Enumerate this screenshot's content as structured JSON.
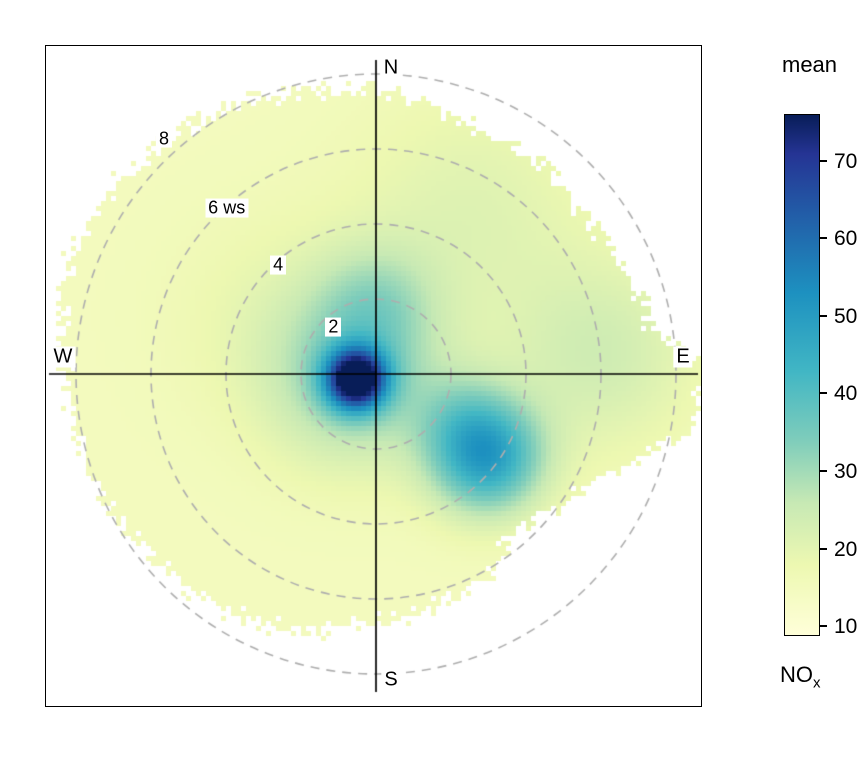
{
  "legend": {
    "title": "mean",
    "pollutant_main": "NO",
    "pollutant_sub": "x"
  },
  "chart_data": {
    "type": "heatmap",
    "subtype": "polar-plot-wind-speed-direction",
    "pollutant": "NOx",
    "statistic": "mean",
    "compass": {
      "n": "N",
      "e": "E",
      "s": "S",
      "w": "W"
    },
    "radial_axis": {
      "unit": "ws",
      "rings_ws": [
        2,
        4,
        6,
        8
      ],
      "ring_labels": [
        "2",
        "4",
        "6 ws",
        "8"
      ],
      "ring_label_radii_ws": [
        1.7,
        3.9,
        5.95,
        8.45
      ],
      "ring_label_angle_deg": 318
    },
    "color_scale": {
      "palette": "YlGnBu",
      "ticks": [
        10,
        20,
        30,
        40,
        50,
        60,
        70
      ],
      "domain": [
        9,
        76
      ],
      "stops": [
        {
          "value": 9,
          "color": "#FFFFD9"
        },
        {
          "value": 18,
          "color": "#EDF8B1"
        },
        {
          "value": 26,
          "color": "#C7E9B4"
        },
        {
          "value": 34,
          "color": "#7FCDBB"
        },
        {
          "value": 43,
          "color": "#41B6C4"
        },
        {
          "value": 53,
          "color": "#1D91C0"
        },
        {
          "value": 63,
          "color": "#225EA8"
        },
        {
          "value": 71,
          "color": "#253494"
        },
        {
          "value": 76,
          "color": "#081D58"
        }
      ]
    },
    "surface": {
      "base_value": 15,
      "features": [
        {
          "name": "primary-hotspot-core",
          "direction_deg": 255,
          "ws": 0.55,
          "peak": 61,
          "sigma_ws": 0.55
        },
        {
          "name": "primary-hotspot-halo",
          "direction_deg": 255,
          "ws": 0.55,
          "peak": 17,
          "sigma_ws": 1.6
        },
        {
          "name": "southeast-plume",
          "direction_deg": 127,
          "ws": 3.7,
          "peak": 33,
          "sigma_ws": 1.05
        },
        {
          "name": "southeast-bridge",
          "direction_deg": 117,
          "ws": 2.6,
          "peak": 8,
          "sigma_ws": 0.9
        },
        {
          "name": "north-streak",
          "direction_deg": 0,
          "ws": 1.9,
          "peak": 10,
          "sigma_ws": 1.1
        },
        {
          "name": "east-elevated-band",
          "direction_deg": 85,
          "ws": 6.0,
          "peak": 9,
          "sigma_ws": 1.8
        },
        {
          "name": "northeast-tinge",
          "direction_deg": 30,
          "ws": 5.0,
          "peak": 6,
          "sigma_ws": 2.2
        },
        {
          "name": "west-mild",
          "direction_deg": 300,
          "ws": 3.0,
          "peak": 4,
          "sigma_ws": 2.0
        }
      ],
      "boundary_deg_step": 10,
      "boundary_max_ws": [
        7.6,
        7.4,
        7.1,
        7.0,
        7.2,
        6.9,
        7.1,
        7.3,
        7.4,
        8.8,
        8.5,
        7.0,
        6.3,
        5.8,
        5.6,
        6.1,
        6.3,
        6.5,
        6.6,
        6.9,
        7.2,
        7.4,
        7.6,
        7.7,
        7.9,
        8.1,
        8.2,
        8.3,
        8.5,
        8.7,
        8.7,
        8.5,
        8.3,
        8.1,
        7.9,
        7.7
      ]
    }
  }
}
